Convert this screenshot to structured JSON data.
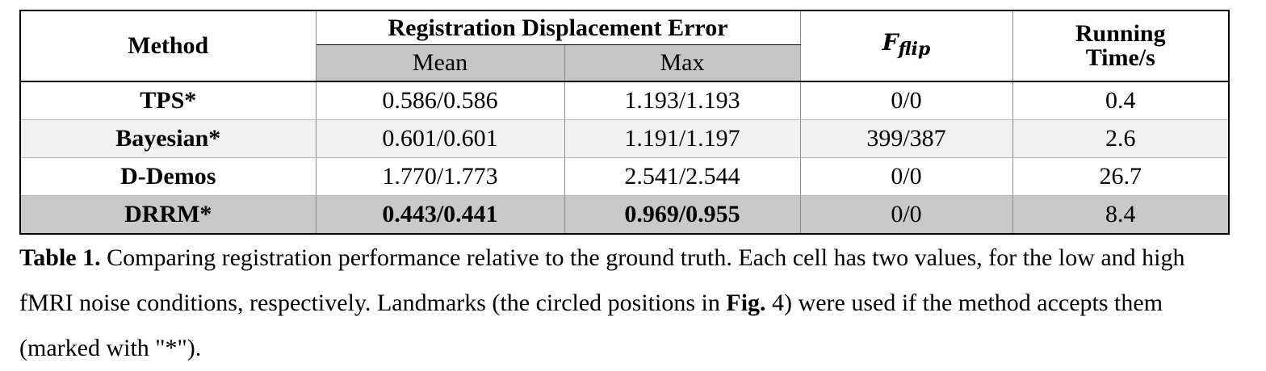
{
  "table": {
    "header": {
      "method": "Method",
      "group": "Registration Displacement Error",
      "mean": "Mean",
      "max": "Max",
      "fflip_base": "F",
      "fflip_sub": "flip",
      "running_line1": "Running",
      "running_line2": "Time/s"
    },
    "rows": [
      {
        "method": "TPS*",
        "mean": "0.586/0.586",
        "max": "1.193/1.193",
        "fflip": "0/0",
        "time": "0.4"
      },
      {
        "method": "Bayesian*",
        "mean": "0.601/0.601",
        "max": "1.191/1.197",
        "fflip": "399/387",
        "time": "2.6"
      },
      {
        "method": "D-Demos",
        "mean": "1.770/1.773",
        "max": "2.541/2.544",
        "fflip": "0/0",
        "time": "26.7"
      },
      {
        "method": "DRRM*",
        "mean": "0.443/0.441",
        "max": "0.969/0.955",
        "fflip": "0/0",
        "time": "8.4"
      }
    ]
  },
  "caption": {
    "label": "Table 1.",
    "text1": " Comparing registration performance relative to the ground truth. Each cell has two values, for the low and high fMRI noise conditions, respectively. Landmarks (the circled positions in ",
    "fig_ref": "Fig.",
    "text2": " 4) were used if the method accepts them (marked with \"*\")."
  }
}
